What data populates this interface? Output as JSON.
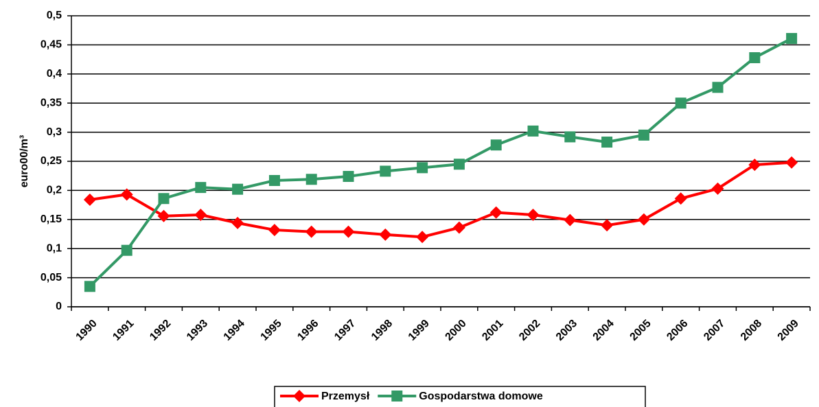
{
  "chart_data": {
    "type": "line",
    "y_label": "euro00/m³",
    "categories": [
      "1990",
      "1991",
      "1992",
      "1993",
      "1994",
      "1995",
      "1996",
      "1997",
      "1998",
      "1999",
      "2000",
      "2001",
      "2002",
      "2003",
      "2004",
      "2005",
      "2006",
      "2007",
      "2008",
      "2009"
    ],
    "series": [
      {
        "name": "Przemysł",
        "color": "#ff0000",
        "marker": "diamond",
        "values": [
          0.184,
          0.193,
          0.156,
          0.158,
          0.144,
          0.132,
          0.129,
          0.129,
          0.124,
          0.12,
          0.136,
          0.162,
          0.158,
          0.149,
          0.14,
          0.15,
          0.186,
          0.203,
          0.244,
          0.248
        ]
      },
      {
        "name": "Gospodarstwa domowe",
        "color": "#339966",
        "marker": "square",
        "values": [
          0.035,
          0.097,
          0.186,
          0.205,
          0.202,
          0.217,
          0.219,
          0.224,
          0.233,
          0.239,
          0.245,
          0.278,
          0.302,
          0.292,
          0.283,
          0.295,
          0.35,
          0.377,
          0.428,
          0.461
        ]
      }
    ],
    "ylim": [
      0,
      0.5
    ],
    "yticks": [
      0,
      {
        "value": 0.05,
        "label": "0,05"
      },
      {
        "value": 0.1,
        "label": "0,1"
      },
      {
        "value": 0.15,
        "label": "0,15"
      },
      {
        "value": 0.2,
        "label": "0,2"
      },
      {
        "value": 0.25,
        "label": "0,25"
      },
      {
        "value": 0.3,
        "label": "0,3"
      },
      {
        "value": 0.35,
        "label": "0,35"
      },
      {
        "value": 0.4,
        "label": "0,4"
      },
      {
        "value": 0.45,
        "label": "0,45"
      },
      {
        "value": 0.5,
        "label": "0,5"
      }
    ],
    "grid": true,
    "legend": "bottom"
  }
}
